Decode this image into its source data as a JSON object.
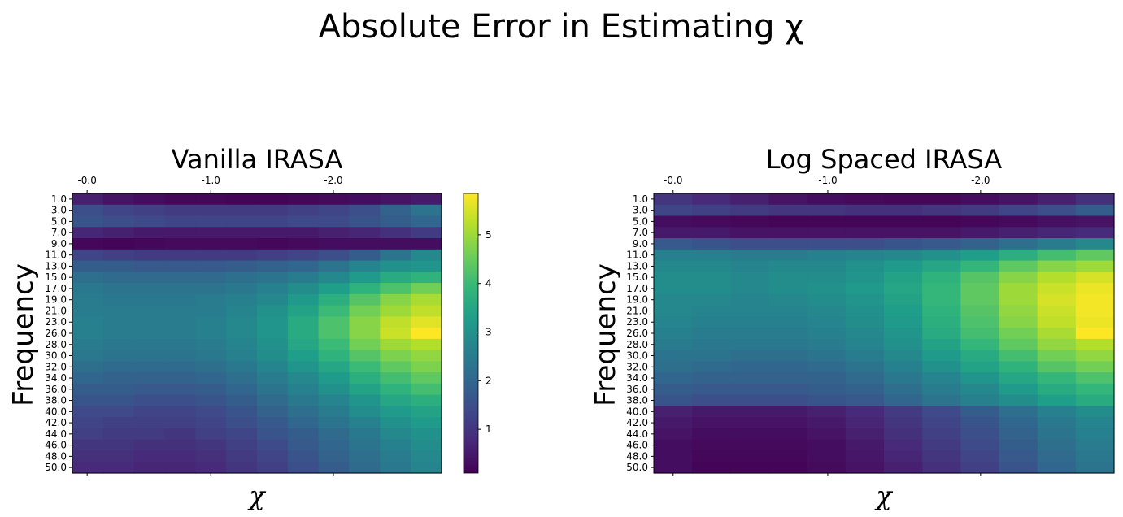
{
  "figure": {
    "title": "Absolute Error in Estimating χ"
  },
  "chart_data": [
    {
      "type": "heatmap",
      "title": "Vanilla IRASA",
      "xlabel": "χ",
      "ylabel": "Frequency",
      "x_tick_labels": [
        "-0.0",
        "-1.0",
        "-2.0"
      ],
      "y_tick_labels": [
        "1.0",
        "3.0",
        "5.0",
        "7.0",
        "9.0",
        "11.0",
        "13.0",
        "15.0",
        "17.0",
        "19.0",
        "21.0",
        "23.0",
        "26.0",
        "28.0",
        "30.0",
        "32.0",
        "34.0",
        "36.0",
        "38.0",
        "40.0",
        "42.0",
        "44.0",
        "46.0",
        "48.0",
        "50.0"
      ],
      "colormap": "viridis",
      "vmin": 0.1,
      "vmax": 5.85,
      "colorbar": {
        "ticks": [
          "1",
          "2",
          "3",
          "4",
          "5"
        ]
      },
      "values": [
        [
          0.6,
          0.4,
          0.3,
          0.2,
          0.2,
          0.15,
          0.15,
          0.2,
          0.25,
          0.3,
          0.4,
          0.5
        ],
        [
          1.5,
          1.3,
          1.2,
          1.1,
          1.1,
          1.1,
          1.1,
          1.2,
          1.3,
          1.5,
          1.9,
          2.3
        ],
        [
          1.6,
          1.5,
          1.4,
          1.3,
          1.3,
          1.3,
          1.3,
          1.4,
          1.4,
          1.6,
          1.8,
          2.0
        ],
        [
          0.7,
          0.6,
          0.5,
          0.5,
          0.5,
          0.5,
          0.5,
          0.5,
          0.6,
          0.7,
          0.9,
          1.1
        ],
        [
          0.2,
          0.15,
          0.2,
          0.25,
          0.25,
          0.25,
          0.2,
          0.25,
          0.3,
          0.3,
          0.3,
          0.3
        ],
        [
          1.3,
          1.2,
          1.1,
          1.1,
          1.1,
          1.1,
          1.2,
          1.3,
          1.5,
          1.8,
          2.3,
          2.8
        ],
        [
          1.8,
          1.8,
          1.7,
          1.7,
          1.7,
          1.8,
          1.9,
          2.0,
          2.3,
          2.7,
          3.0,
          3.1
        ],
        [
          2.2,
          2.1,
          2.1,
          2.1,
          2.1,
          2.2,
          2.3,
          2.5,
          2.8,
          3.2,
          3.6,
          3.8
        ],
        [
          2.4,
          2.3,
          2.3,
          2.3,
          2.3,
          2.4,
          2.6,
          2.9,
          3.3,
          3.8,
          4.2,
          4.6
        ],
        [
          2.5,
          2.4,
          2.4,
          2.4,
          2.5,
          2.6,
          2.8,
          3.2,
          3.7,
          4.3,
          4.8,
          5.1
        ],
        [
          2.5,
          2.5,
          2.5,
          2.5,
          2.5,
          2.7,
          3.0,
          3.4,
          4.0,
          4.6,
          5.0,
          5.3
        ],
        [
          2.6,
          2.5,
          2.5,
          2.5,
          2.6,
          2.8,
          3.1,
          3.6,
          4.2,
          4.8,
          5.3,
          5.6
        ],
        [
          2.6,
          2.5,
          2.5,
          2.5,
          2.6,
          2.8,
          3.1,
          3.6,
          4.2,
          4.8,
          5.4,
          5.85
        ],
        [
          2.5,
          2.4,
          2.4,
          2.4,
          2.5,
          2.7,
          3.0,
          3.5,
          4.0,
          4.6,
          5.0,
          5.2
        ],
        [
          2.4,
          2.3,
          2.3,
          2.3,
          2.4,
          2.6,
          2.9,
          3.3,
          3.8,
          4.3,
          4.7,
          4.9
        ],
        [
          2.2,
          2.1,
          2.1,
          2.1,
          2.2,
          2.4,
          2.7,
          3.1,
          3.5,
          4.0,
          4.4,
          4.7
        ],
        [
          2.0,
          1.9,
          1.9,
          1.9,
          2.0,
          2.2,
          2.5,
          2.8,
          3.2,
          3.7,
          4.1,
          4.4
        ],
        [
          1.8,
          1.8,
          1.7,
          1.7,
          1.8,
          2.0,
          2.3,
          2.6,
          3.0,
          3.4,
          3.8,
          4.1
        ],
        [
          1.6,
          1.6,
          1.5,
          1.5,
          1.6,
          1.8,
          2.1,
          2.4,
          2.7,
          3.1,
          3.5,
          3.7
        ],
        [
          1.4,
          1.4,
          1.3,
          1.3,
          1.4,
          1.6,
          1.9,
          2.2,
          2.5,
          2.9,
          3.2,
          3.4
        ],
        [
          1.3,
          1.2,
          1.2,
          1.2,
          1.3,
          1.5,
          1.7,
          2.0,
          2.3,
          2.6,
          3.0,
          3.2
        ],
        [
          1.2,
          1.1,
          1.1,
          1.0,
          1.2,
          1.3,
          1.6,
          1.8,
          2.1,
          2.4,
          2.8,
          3.0
        ],
        [
          1.0,
          1.0,
          0.9,
          0.9,
          1.0,
          1.2,
          1.4,
          1.7,
          2.0,
          2.3,
          2.6,
          2.9
        ],
        [
          0.9,
          0.9,
          0.8,
          0.8,
          0.9,
          1.1,
          1.3,
          1.6,
          1.9,
          2.2,
          2.5,
          2.8
        ],
        [
          0.8,
          0.8,
          0.7,
          0.7,
          0.8,
          1.0,
          1.2,
          1.5,
          1.8,
          2.1,
          2.4,
          2.7
        ]
      ]
    },
    {
      "type": "heatmap",
      "title": "Log Spaced IRASA",
      "xlabel": "χ",
      "ylabel": "Frequency",
      "x_tick_labels": [
        "-0.0",
        "-1.0",
        "-2.0"
      ],
      "y_tick_labels": [
        "1.0",
        "3.0",
        "5.0",
        "7.0",
        "9.0",
        "11.0",
        "13.0",
        "15.0",
        "17.0",
        "19.0",
        "21.0",
        "23.0",
        "26.0",
        "28.0",
        "30.0",
        "32.0",
        "34.0",
        "36.0",
        "38.0",
        "40.0",
        "42.0",
        "44.0",
        "46.0",
        "48.0",
        "50.0"
      ],
      "colormap": "viridis",
      "vmin": 0.1,
      "vmax": 5.85,
      "values": [
        [
          1.0,
          0.8,
          0.6,
          0.4,
          0.3,
          0.25,
          0.2,
          0.2,
          0.3,
          0.4,
          0.6,
          0.9
        ],
        [
          1.3,
          1.2,
          1.1,
          1.0,
          1.0,
          0.9,
          0.9,
          1.0,
          1.1,
          1.3,
          1.5,
          1.8
        ],
        [
          0.3,
          0.25,
          0.2,
          0.15,
          0.15,
          0.15,
          0.15,
          0.15,
          0.2,
          0.25,
          0.35,
          0.4
        ],
        [
          0.5,
          0.5,
          0.4,
          0.4,
          0.4,
          0.4,
          0.4,
          0.4,
          0.5,
          0.6,
          0.7,
          0.8
        ],
        [
          1.7,
          1.6,
          1.5,
          1.5,
          1.5,
          1.5,
          1.6,
          1.7,
          1.9,
          2.2,
          2.5,
          2.8
        ],
        [
          2.6,
          2.6,
          2.5,
          2.5,
          2.6,
          2.7,
          2.8,
          3.0,
          3.3,
          3.7,
          4.1,
          4.4
        ],
        [
          2.8,
          2.8,
          2.7,
          2.8,
          2.8,
          3.0,
          3.2,
          3.5,
          3.9,
          4.4,
          4.8,
          5.0
        ],
        [
          2.9,
          2.9,
          2.8,
          2.9,
          2.9,
          3.1,
          3.4,
          3.8,
          4.3,
          4.8,
          5.2,
          5.5
        ],
        [
          2.9,
          2.9,
          2.8,
          2.9,
          3.0,
          3.2,
          3.5,
          3.9,
          4.4,
          5.0,
          5.4,
          5.7
        ],
        [
          2.8,
          2.8,
          2.7,
          2.8,
          2.9,
          3.1,
          3.4,
          3.9,
          4.4,
          5.0,
          5.5,
          5.75
        ],
        [
          2.8,
          2.7,
          2.7,
          2.7,
          2.8,
          3.0,
          3.3,
          3.8,
          4.3,
          4.9,
          5.4,
          5.75
        ],
        [
          2.7,
          2.6,
          2.6,
          2.6,
          2.7,
          2.9,
          3.2,
          3.7,
          4.2,
          4.8,
          5.3,
          5.7
        ],
        [
          2.6,
          2.5,
          2.5,
          2.5,
          2.6,
          2.8,
          3.1,
          3.6,
          4.1,
          4.6,
          5.1,
          5.85
        ],
        [
          2.5,
          2.4,
          2.4,
          2.4,
          2.5,
          2.7,
          3.0,
          3.4,
          3.9,
          4.4,
          4.9,
          5.2
        ],
        [
          2.3,
          2.3,
          2.2,
          2.2,
          2.3,
          2.5,
          2.8,
          3.2,
          3.6,
          4.1,
          4.6,
          4.9
        ],
        [
          2.2,
          2.1,
          2.0,
          2.0,
          2.1,
          2.3,
          2.6,
          3.0,
          3.4,
          3.8,
          4.3,
          4.6
        ],
        [
          2.0,
          1.9,
          1.9,
          1.9,
          1.9,
          2.1,
          2.4,
          2.7,
          3.1,
          3.5,
          3.9,
          4.2
        ],
        [
          1.8,
          1.7,
          1.7,
          1.7,
          1.8,
          1.9,
          2.2,
          2.5,
          2.8,
          3.2,
          3.6,
          3.9
        ],
        [
          1.6,
          1.5,
          1.5,
          1.5,
          1.6,
          1.7,
          2.0,
          2.3,
          2.6,
          2.9,
          3.3,
          3.6
        ],
        [
          0.6,
          0.5,
          0.5,
          0.5,
          0.6,
          0.8,
          1.1,
          1.4,
          1.8,
          2.2,
          2.6,
          2.9
        ],
        [
          0.5,
          0.4,
          0.4,
          0.4,
          0.5,
          0.7,
          1.0,
          1.3,
          1.6,
          2.0,
          2.4,
          2.7
        ],
        [
          0.4,
          0.3,
          0.3,
          0.3,
          0.4,
          0.6,
          0.9,
          1.2,
          1.5,
          1.9,
          2.3,
          2.6
        ],
        [
          0.3,
          0.25,
          0.25,
          0.25,
          0.3,
          0.5,
          0.8,
          1.1,
          1.4,
          1.8,
          2.2,
          2.5
        ],
        [
          0.3,
          0.2,
          0.2,
          0.2,
          0.3,
          0.45,
          0.7,
          1.0,
          1.3,
          1.7,
          2.1,
          2.4
        ],
        [
          0.3,
          0.15,
          0.15,
          0.15,
          0.25,
          0.4,
          0.6,
          0.9,
          1.2,
          1.6,
          2.0,
          2.3
        ]
      ]
    }
  ]
}
